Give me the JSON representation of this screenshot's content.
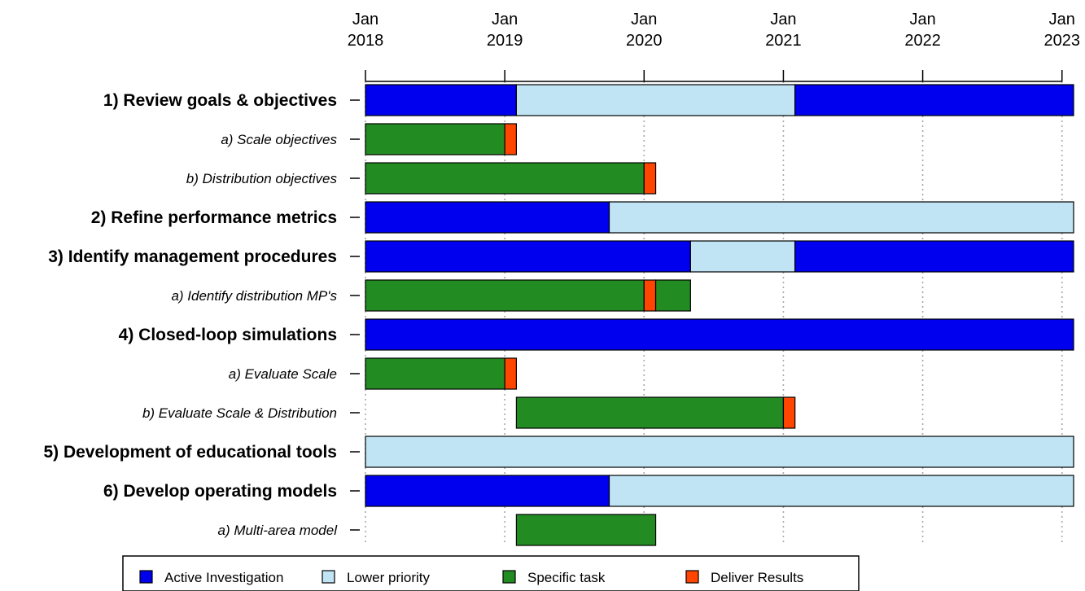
{
  "chart_data": {
    "type": "gantt",
    "x_axis": {
      "type": "date",
      "range": [
        "2018-01-01",
        "2023-02-01"
      ],
      "position": "top",
      "ticks": [
        {
          "date": "2018-01-01",
          "label": [
            "Jan",
            "2018"
          ]
        },
        {
          "date": "2019-01-01",
          "label": [
            "Jan",
            "2019"
          ]
        },
        {
          "date": "2020-01-01",
          "label": [
            "Jan",
            "2020"
          ]
        },
        {
          "date": "2021-01-01",
          "label": [
            "Jan",
            "2021"
          ]
        },
        {
          "date": "2022-01-01",
          "label": [
            "Jan",
            "2022"
          ]
        },
        {
          "date": "2023-01-01",
          "label": [
            "Jan",
            "2023"
          ]
        }
      ],
      "grid": "dotted vertical"
    },
    "categories": {
      "active": {
        "label": "Active Investigation",
        "color": "#0000ee"
      },
      "lower": {
        "label": "Lower priority",
        "color": "#c0e4f4"
      },
      "task": {
        "label": "Specific task",
        "color": "#228b22"
      },
      "deliver": {
        "label": "Deliver Results",
        "color": "#ff4500"
      }
    },
    "legend_order": [
      "active",
      "lower",
      "task",
      "deliver"
    ],
    "legend_position": "bottom",
    "tasks": [
      {
        "label": "1) Review goals & objectives",
        "level": "main",
        "segments": [
          {
            "start": "2018-01-01",
            "end": "2019-02-01",
            "cat": "active"
          },
          {
            "start": "2019-02-01",
            "end": "2021-02-01",
            "cat": "lower"
          },
          {
            "start": "2021-02-01",
            "end": "2023-02-01",
            "cat": "active"
          }
        ]
      },
      {
        "label": "a) Scale objectives",
        "level": "sub",
        "segments": [
          {
            "start": "2018-01-01",
            "end": "2019-01-01",
            "cat": "task"
          },
          {
            "start": "2019-01-01",
            "end": "2019-02-01",
            "cat": "deliver"
          }
        ]
      },
      {
        "label": "b) Distribution objectives",
        "level": "sub",
        "segments": [
          {
            "start": "2018-01-01",
            "end": "2020-01-01",
            "cat": "task"
          },
          {
            "start": "2020-01-01",
            "end": "2020-02-01",
            "cat": "deliver"
          }
        ]
      },
      {
        "label": "2) Refine performance metrics",
        "level": "main",
        "segments": [
          {
            "start": "2018-01-01",
            "end": "2019-10-01",
            "cat": "active"
          },
          {
            "start": "2019-10-01",
            "end": "2023-02-01",
            "cat": "lower"
          }
        ]
      },
      {
        "label": "3) Identify management procedures",
        "level": "main",
        "segments": [
          {
            "start": "2018-01-01",
            "end": "2020-05-01",
            "cat": "active"
          },
          {
            "start": "2020-05-01",
            "end": "2021-02-01",
            "cat": "lower"
          },
          {
            "start": "2021-02-01",
            "end": "2023-02-01",
            "cat": "active"
          }
        ]
      },
      {
        "label": "a) Identify distribution MP's",
        "level": "sub",
        "segments": [
          {
            "start": "2018-01-01",
            "end": "2020-01-01",
            "cat": "task"
          },
          {
            "start": "2020-01-01",
            "end": "2020-02-01",
            "cat": "deliver"
          },
          {
            "start": "2020-02-01",
            "end": "2020-05-01",
            "cat": "task"
          }
        ]
      },
      {
        "label": "4) Closed-loop simulations",
        "level": "main",
        "segments": [
          {
            "start": "2018-01-01",
            "end": "2023-02-01",
            "cat": "active"
          }
        ]
      },
      {
        "label": "a) Evaluate Scale",
        "level": "sub",
        "segments": [
          {
            "start": "2018-01-01",
            "end": "2019-01-01",
            "cat": "task"
          },
          {
            "start": "2019-01-01",
            "end": "2019-02-01",
            "cat": "deliver"
          }
        ]
      },
      {
        "label": "b) Evaluate Scale & Distribution",
        "level": "sub",
        "segments": [
          {
            "start": "2019-02-01",
            "end": "2021-01-01",
            "cat": "task"
          },
          {
            "start": "2021-01-01",
            "end": "2021-02-01",
            "cat": "deliver"
          }
        ]
      },
      {
        "label": "5) Development of educational tools",
        "level": "main",
        "segments": [
          {
            "start": "2018-01-01",
            "end": "2023-02-01",
            "cat": "lower"
          }
        ]
      },
      {
        "label": "6) Develop operating models",
        "level": "main",
        "segments": [
          {
            "start": "2018-01-01",
            "end": "2019-10-01",
            "cat": "active"
          },
          {
            "start": "2019-10-01",
            "end": "2023-02-01",
            "cat": "lower"
          }
        ]
      },
      {
        "label": "a) Multi-area model",
        "level": "sub",
        "segments": [
          {
            "start": "2019-02-01",
            "end": "2020-02-01",
            "cat": "task"
          }
        ]
      }
    ]
  }
}
